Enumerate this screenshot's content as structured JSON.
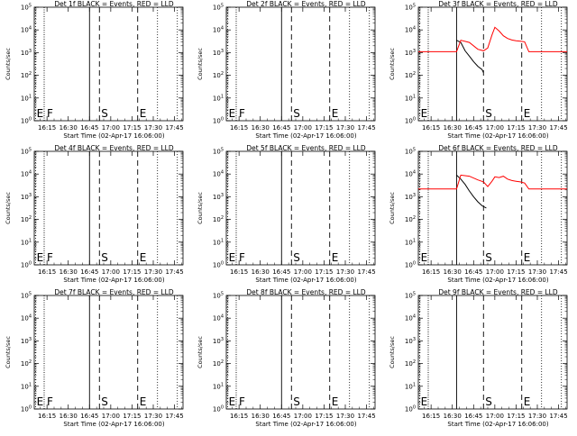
{
  "figure": {
    "ylabel": "Counts/sec",
    "xlabel": "Start Time (02-Apr-17 16:06:00)",
    "x_tick_labels": [
      "16:15",
      "16:30",
      "16:45",
      "17:00",
      "17:15",
      "17:30",
      "17:45"
    ],
    "y_tick_labels": [
      "10^0",
      "10^1",
      "10^2",
      "10^3",
      "10^4",
      "10^5"
    ],
    "marker_labels": {
      "E": "E",
      "F": "F",
      "S": "S"
    },
    "colors": {
      "events": "#000000",
      "lld": "#ff0000"
    }
  },
  "chart_data": [
    {
      "type": "line",
      "title": "Det 1f BLACK = Events, RED = LLD",
      "series": [],
      "markers": "EFSE"
    },
    {
      "type": "line",
      "title": "Det 2f BLACK = Events, RED = LLD",
      "series": [],
      "markers": "EFSE"
    },
    {
      "type": "line",
      "title": "Det 3f BLACK = Events, RED = LLD",
      "markers": "ESE",
      "xlim": [
        "16:06",
        "17:51"
      ],
      "ylim": [
        1,
        100000
      ],
      "yscale": "log",
      "series": [
        {
          "name": "Events",
          "color": "#000000",
          "x": [
            "16:33",
            "16:36",
            "16:39",
            "16:42",
            "16:45",
            "16:48",
            "16:51",
            "16:52"
          ],
          "y": [
            3500,
            2800,
            1200,
            700,
            400,
            250,
            180,
            130
          ]
        },
        {
          "name": "LLD",
          "color": "#ff0000",
          "x": [
            "16:06",
            "16:33",
            "16:36",
            "16:42",
            "16:48",
            "16:52",
            "16:55",
            "16:58",
            "17:00",
            "17:03",
            "17:06",
            "17:09",
            "17:12",
            "17:15",
            "17:18",
            "17:21",
            "17:24",
            "17:51"
          ],
          "y": [
            1100,
            1100,
            3500,
            2800,
            1400,
            1200,
            1600,
            6000,
            13000,
            9000,
            5500,
            4200,
            3600,
            3300,
            3200,
            3000,
            1100,
            1100
          ]
        }
      ]
    },
    {
      "type": "line",
      "title": "Det 4f BLACK = Events, RED = LLD",
      "series": [],
      "markers": "EFSE"
    },
    {
      "type": "line",
      "title": "Det 5f BLACK = Events, RED = LLD",
      "series": [],
      "markers": "EFSE"
    },
    {
      "type": "line",
      "title": "Det 6f BLACK = Events, RED = LLD",
      "markers": "ESE",
      "xlim": [
        "16:06",
        "17:51"
      ],
      "ylim": [
        1,
        100000
      ],
      "yscale": "log",
      "series": [
        {
          "name": "Events",
          "color": "#000000",
          "x": [
            "16:33",
            "16:36",
            "16:39",
            "16:42",
            "16:45",
            "16:48",
            "16:51",
            "16:54"
          ],
          "y": [
            9000,
            6000,
            3500,
            1800,
            1000,
            600,
            400,
            320
          ]
        },
        {
          "name": "LLD",
          "color": "#ff0000",
          "x": [
            "16:06",
            "16:33",
            "16:36",
            "16:42",
            "16:48",
            "16:52",
            "16:55",
            "16:58",
            "17:00",
            "17:03",
            "17:06",
            "17:09",
            "17:12",
            "17:15",
            "17:18",
            "17:21",
            "17:24",
            "17:51"
          ],
          "y": [
            2200,
            2200,
            9000,
            8000,
            5500,
            4500,
            2800,
            4800,
            7500,
            7000,
            8000,
            6000,
            5200,
            4800,
            4500,
            4000,
            2200,
            2200
          ]
        }
      ]
    },
    {
      "type": "line",
      "title": "Det 7f BLACK = Events, RED = LLD",
      "series": [],
      "markers": "EFSE"
    },
    {
      "type": "line",
      "title": "Det 8f BLACK = Events, RED = LLD",
      "series": [],
      "markers": "EFSE"
    },
    {
      "type": "line",
      "title": "Det 9f BLACK = Events, RED = LLD",
      "series": [],
      "markers": "ESE"
    }
  ]
}
